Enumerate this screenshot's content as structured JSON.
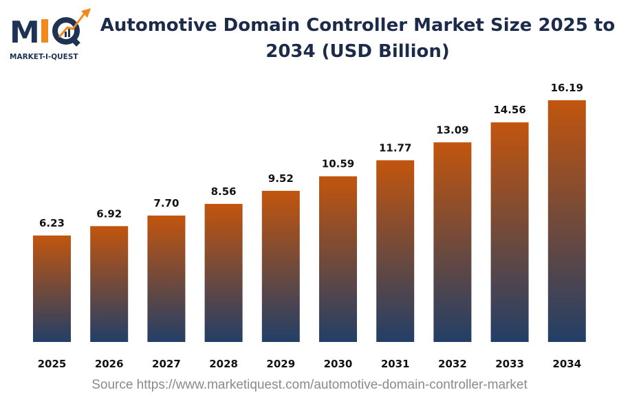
{
  "logo": {
    "text": "MIQ",
    "subtitle": "MARKET-I-QUEST",
    "colors": {
      "navy": "#1f3354",
      "orange": "#f08a1c"
    }
  },
  "title": "Automotive Domain Controller Market Size 2025 to 2034 (USD Billion)",
  "source": "Source https://www.marketiquest.com/automotive-domain-controller-market",
  "chart_data": {
    "type": "bar",
    "title": "Automotive Domain Controller Market Size 2025 to 2034 (USD Billion)",
    "categories": [
      "2025",
      "2026",
      "2027",
      "2028",
      "2029",
      "2030",
      "2031",
      "2032",
      "2033",
      "2034"
    ],
    "values": [
      6.23,
      6.92,
      7.7,
      8.56,
      9.52,
      10.59,
      11.77,
      13.09,
      14.56,
      16.19
    ],
    "value_labels": [
      "6.23",
      "6.92",
      "7.70",
      "8.56",
      "9.52",
      "10.59",
      "11.77",
      "13.09",
      "14.56",
      "16.19"
    ],
    "xlabel": "",
    "ylabel": "",
    "grid": false,
    "legend": "none",
    "colors": {
      "bar_top": "#c2550e",
      "bar_bottom": "#233f67",
      "label": "#111111"
    }
  }
}
